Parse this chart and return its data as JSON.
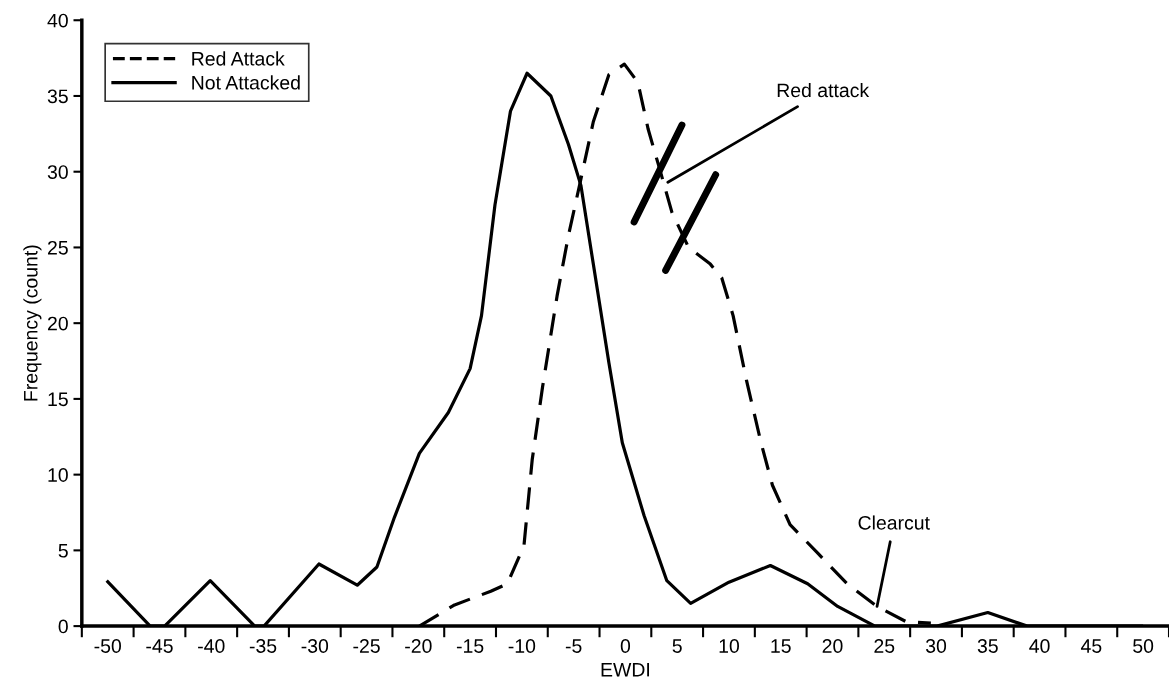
{
  "chart_data": {
    "type": "line",
    "xlabel": "EWDI",
    "ylabel": "Frequency (count)",
    "xlim": [
      -52.5,
      52.5
    ],
    "xticks": [
      {
        "value": -52.5,
        "label": null
      },
      -50,
      {
        "value": -47.5,
        "label": null
      },
      -45,
      {
        "value": -42.5,
        "label": null
      },
      -40,
      {
        "value": -37.5,
        "label": null
      },
      -35,
      {
        "value": -32.5,
        "label": null
      },
      -30,
      {
        "value": -27.5,
        "label": null
      },
      -25,
      {
        "value": -22.5,
        "label": null
      },
      -20,
      {
        "value": -17.5,
        "label": null
      },
      -15,
      {
        "value": -12.5,
        "label": null
      },
      -10,
      {
        "value": -7.5,
        "label": null
      },
      -5,
      {
        "value": -2.5,
        "label": null
      },
      0,
      {
        "value": 2.5,
        "label": null
      },
      5,
      {
        "value": 7.5,
        "label": null
      },
      10,
      {
        "value": 12.5,
        "label": null
      },
      15,
      {
        "value": 17.5,
        "label": null
      },
      20,
      {
        "value": 22.5,
        "label": null
      },
      25,
      {
        "value": 27.5,
        "label": null
      },
      30,
      {
        "value": 32.5,
        "label": null
      },
      35,
      {
        "value": 37.5,
        "label": null
      },
      40,
      {
        "value": 42.5,
        "label": null
      },
      45,
      {
        "value": 47.5,
        "label": null
      },
      50,
      {
        "value": 52.5,
        "label": null
      }
    ],
    "ylim": [
      0,
      40
    ],
    "yticks": [
      0,
      5,
      10,
      15,
      20,
      25,
      30,
      35,
      40
    ],
    "grid": false,
    "legend": "top left",
    "marker": "none",
    "series": [
      {
        "name": "Red Attack",
        "color": "#000000",
        "line_style": "dashed",
        "x": [
          -19.9,
          -16.5,
          -13.0,
          -11.4,
          -9.8,
          -9.0,
          -8.0,
          -6.6,
          -5.5,
          -4.4,
          -3.1,
          -1.6,
          -0.1,
          1.2,
          2.2,
          3.3,
          4.5,
          6.1,
          8.2,
          9.3,
          10.4,
          11.7,
          13.1,
          14.2,
          15.9,
          18.6,
          21.4,
          24.3,
          27.1,
          29.5
        ],
        "values": [
          0,
          1.4,
          2.3,
          2.8,
          5.3,
          11.0,
          15.8,
          21.8,
          25.8,
          29.2,
          33.3,
          36.4,
          37.1,
          35.9,
          32.8,
          30.2,
          27.3,
          25.0,
          23.9,
          23.0,
          20.5,
          16.2,
          12.1,
          9.3,
          6.7,
          4.8,
          2.8,
          1.3,
          0.3,
          0.2
        ]
      },
      {
        "name": "Not Attacked",
        "color": "#000000",
        "line_style": "solid",
        "x": [
          -50.1,
          -45.9,
          -44.5,
          -40.1,
          -35.8,
          -34.9,
          -29.6,
          -25.9,
          -24.0,
          -22.3,
          -19.9,
          -17.1,
          -15.0,
          -13.9,
          -12.6,
          -11.1,
          -9.5,
          -7.2,
          -5.5,
          -4.3,
          -3.1,
          -1.6,
          -0.3,
          1.8,
          4.0,
          6.3,
          10.0,
          14.0,
          17.6,
          20.5,
          24.1,
          30.1,
          35.0,
          38.8,
          50.0
        ],
        "values": [
          3.0,
          0,
          0,
          3.0,
          0,
          0,
          4.1,
          2.7,
          3.9,
          7.2,
          11.4,
          14.1,
          17.0,
          20.5,
          27.8,
          34.0,
          36.5,
          35.0,
          31.8,
          29.1,
          23.9,
          17.4,
          12.1,
          7.3,
          3.0,
          1.5,
          2.9,
          4.0,
          2.8,
          1.3,
          0,
          0,
          0.9,
          0,
          0
        ]
      }
    ],
    "annotations": [
      {
        "text": "Red attack",
        "x": 4.1,
        "y": 29.3
      },
      {
        "text": "Clearcut",
        "x": 24.3,
        "y": 1.3
      }
    ]
  }
}
